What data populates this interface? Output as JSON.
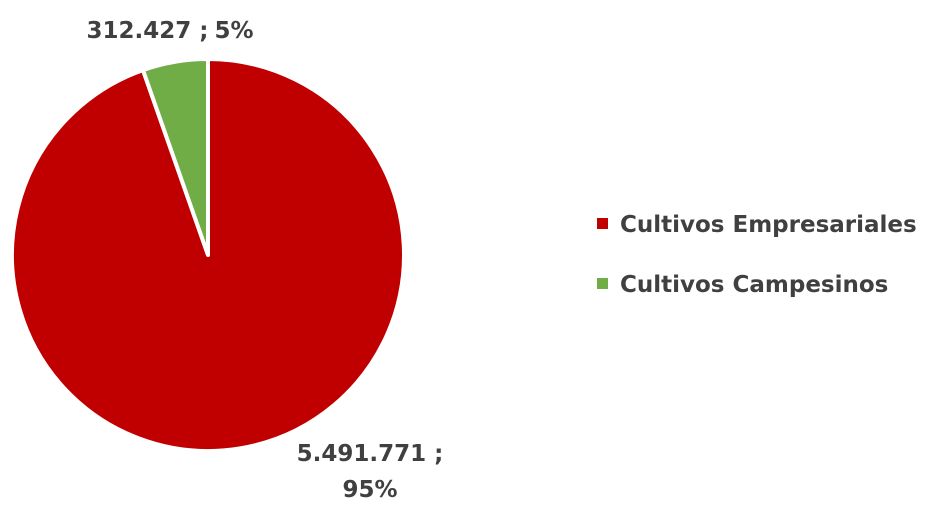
{
  "chart_data": {
    "type": "pie",
    "categories": [
      "Cultivos Empresariales",
      "Cultivos Campesinos"
    ],
    "values": [
      5491771,
      312427
    ],
    "percent_labels": [
      "95%",
      "5%"
    ],
    "value_labels": [
      "5.491.771",
      "312.427"
    ],
    "label_separator": " ;",
    "colors": [
      "#c00000",
      "#70ad47"
    ],
    "title": "",
    "legend_position": "right"
  }
}
